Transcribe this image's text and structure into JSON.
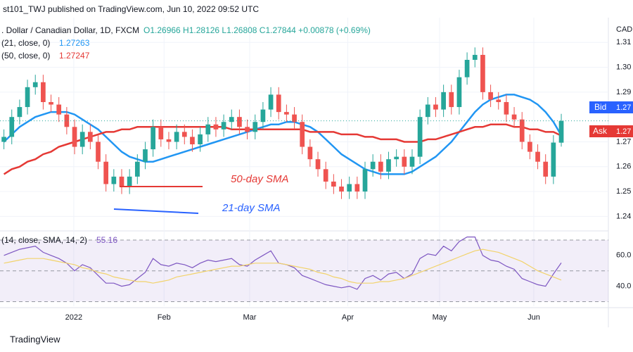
{
  "header": "st101_TWJ published on TradingView.com, Jun 10, 2022 09:52 UTC",
  "footer": "TradingView",
  "chart_data": {
    "type": "candlestick",
    "symbol": ". Dollar / Canadian Dollar, 1D, FXCM",
    "ohlc_label": "O1.26966 H1.28126 L1.26808 C1.27844 +0.00878 (+0.69%)",
    "currency": "CAD",
    "bid": {
      "name": "Bid",
      "label": "1.27"
    },
    "ask": {
      "name": "Ask",
      "label": "1.27"
    },
    "annotations": [
      "50-day SMA",
      "21-day SMA"
    ],
    "up_color": "#26a69a",
    "down_color": "#ef5350",
    "xlim": [
      -0.5,
      77
    ],
    "xticks": [
      {
        "value": 8.9,
        "label": "2022"
      },
      {
        "value": 20.4,
        "label": "Feb"
      },
      {
        "value": 31.3,
        "label": "Mar"
      },
      {
        "value": 43.8,
        "label": "Apr"
      },
      {
        "value": 55.5,
        "label": "May"
      },
      {
        "value": 67.5,
        "label": "Jun"
      }
    ],
    "ylim": [
      1.235,
      1.32
    ],
    "yticks": [
      1.24,
      1.25,
      1.26,
      1.27,
      {
        "value": 1.29,
        "label": "1.29"
      },
      {
        "value": 1.3,
        "label": "1.30"
      },
      1.31
    ],
    "grid": true,
    "open": [
      1.27,
      1.272,
      1.28,
      1.284,
      1.292,
      1.294,
      1.286,
      1.285,
      1.281,
      1.276,
      1.268,
      1.274,
      1.27,
      1.262,
      1.253,
      1.256,
      1.252,
      1.256,
      1.262,
      1.267,
      1.276,
      1.271,
      1.27,
      1.274,
      1.272,
      1.269,
      1.273,
      1.277,
      1.275,
      1.278,
      1.28,
      1.276,
      1.274,
      1.278,
      1.283,
      1.289,
      1.282,
      1.281,
      1.278,
      1.268,
      1.263,
      1.259,
      1.254,
      1.252,
      1.25,
      1.253,
      1.25,
      1.259,
      1.262,
      1.258,
      1.263,
      1.264,
      1.26,
      1.264,
      1.28,
      1.285,
      1.283,
      1.29,
      1.284,
      1.296,
      1.303,
      1.305,
      1.29,
      1.287,
      1.286,
      1.281,
      1.279,
      1.27,
      1.266,
      1.262,
      1.256,
      1.26966
    ],
    "high": [
      1.275,
      1.283,
      1.287,
      1.295,
      1.297,
      1.297,
      1.289,
      1.288,
      1.284,
      1.279,
      1.277,
      1.277,
      1.273,
      1.265,
      1.259,
      1.259,
      1.259,
      1.265,
      1.27,
      1.279,
      1.279,
      1.274,
      1.277,
      1.277,
      1.275,
      1.276,
      1.28,
      1.28,
      1.281,
      1.283,
      1.283,
      1.279,
      1.281,
      1.286,
      1.292,
      1.292,
      1.285,
      1.284,
      1.281,
      1.271,
      1.266,
      1.262,
      1.257,
      1.255,
      1.256,
      1.256,
      1.262,
      1.265,
      1.265,
      1.266,
      1.267,
      1.267,
      1.267,
      1.283,
      1.288,
      1.288,
      1.293,
      1.293,
      1.299,
      1.306,
      1.308,
      1.308,
      1.293,
      1.29,
      1.289,
      1.284,
      1.282,
      1.273,
      1.269,
      1.265,
      1.2727,
      1.28126
    ],
    "low": [
      1.267,
      1.269,
      1.277,
      1.281,
      1.289,
      1.283,
      1.282,
      1.278,
      1.273,
      1.265,
      1.265,
      1.267,
      1.259,
      1.25,
      1.25,
      1.249,
      1.249,
      1.253,
      1.259,
      1.264,
      1.268,
      1.267,
      1.267,
      1.269,
      1.266,
      1.266,
      1.27,
      1.272,
      1.272,
      1.275,
      1.273,
      1.271,
      1.271,
      1.275,
      1.28,
      1.279,
      1.278,
      1.275,
      1.265,
      1.26,
      1.256,
      1.251,
      1.249,
      1.247,
      1.247,
      1.247,
      1.247,
      1.256,
      1.255,
      1.255,
      1.26,
      1.257,
      1.257,
      1.261,
      1.277,
      1.28,
      1.28,
      1.281,
      1.281,
      1.293,
      1.3,
      1.287,
      1.284,
      1.283,
      1.278,
      1.276,
      1.267,
      1.263,
      1.259,
      1.253,
      1.253,
      1.26808
    ],
    "close": [
      1.272,
      1.28,
      1.284,
      1.292,
      1.294,
      1.286,
      1.285,
      1.281,
      1.276,
      1.268,
      1.274,
      1.27,
      1.262,
      1.253,
      1.256,
      1.252,
      1.256,
      1.262,
      1.267,
      1.276,
      1.271,
      1.27,
      1.274,
      1.272,
      1.269,
      1.273,
      1.277,
      1.275,
      1.278,
      1.28,
      1.276,
      1.274,
      1.278,
      1.283,
      1.289,
      1.282,
      1.281,
      1.278,
      1.268,
      1.263,
      1.259,
      1.254,
      1.252,
      1.25,
      1.253,
      1.25,
      1.259,
      1.262,
      1.258,
      1.263,
      1.264,
      1.26,
      1.264,
      1.28,
      1.285,
      1.283,
      1.29,
      1.284,
      1.296,
      1.303,
      1.305,
      1.29,
      1.287,
      1.286,
      1.281,
      1.279,
      1.27,
      1.266,
      1.262,
      1.256,
      1.2697,
      1.27844
    ],
    "series": [
      {
        "name": "(21, close, 0)",
        "color": "#2196f3",
        "value_label": "1.27263",
        "values": [
          1.27,
          1.273,
          1.276,
          1.278,
          1.28,
          1.281,
          1.282,
          1.282,
          1.282,
          1.281,
          1.279,
          1.277,
          1.275,
          1.272,
          1.269,
          1.266,
          1.264,
          1.263,
          1.262,
          1.262,
          1.263,
          1.264,
          1.265,
          1.266,
          1.267,
          1.268,
          1.269,
          1.27,
          1.271,
          1.272,
          1.273,
          1.274,
          1.275,
          1.276,
          1.277,
          1.277,
          1.278,
          1.278,
          1.277,
          1.276,
          1.274,
          1.271,
          1.268,
          1.265,
          1.263,
          1.261,
          1.259,
          1.258,
          1.257,
          1.257,
          1.257,
          1.257,
          1.258,
          1.26,
          1.262,
          1.264,
          1.267,
          1.27,
          1.274,
          1.278,
          1.282,
          1.285,
          1.287,
          1.288,
          1.289,
          1.289,
          1.288,
          1.287,
          1.285,
          1.282,
          1.278,
          1.27263
        ]
      },
      {
        "name": "(50, close, 0)",
        "color": "#e53935",
        "value_label": "1.27247",
        "values": [
          1.257,
          1.259,
          1.26,
          1.262,
          1.263,
          1.265,
          1.266,
          1.268,
          1.269,
          1.27,
          1.271,
          1.272,
          1.273,
          1.274,
          1.274,
          1.275,
          1.275,
          1.276,
          1.276,
          1.276,
          1.276,
          1.276,
          1.276,
          1.276,
          1.276,
          1.276,
          1.276,
          1.276,
          1.276,
          1.275,
          1.275,
          1.275,
          1.275,
          1.275,
          1.275,
          1.275,
          1.275,
          1.275,
          1.275,
          1.274,
          1.274,
          1.274,
          1.274,
          1.273,
          1.273,
          1.273,
          1.272,
          1.272,
          1.271,
          1.271,
          1.271,
          1.27,
          1.27,
          1.27,
          1.271,
          1.271,
          1.272,
          1.273,
          1.274,
          1.275,
          1.276,
          1.276,
          1.277,
          1.277,
          1.277,
          1.276,
          1.276,
          1.275,
          1.275,
          1.274,
          1.274,
          1.27247
        ]
      }
    ],
    "rsi": {
      "name": "(14, close, SMA, 14, 2)",
      "ylim": [
        27,
        75
      ],
      "yticks": [
        {
          "value": 60,
          "label": "60.0"
        },
        {
          "value": 40,
          "label": "40.0"
        }
      ],
      "bands": [
        70,
        50,
        30
      ],
      "series": [
        {
          "color": "#7e57c2",
          "value_label": "55.16",
          "values": [
            60,
            62,
            64,
            65,
            66,
            62,
            60,
            58,
            55,
            50,
            54,
            52,
            47,
            42,
            42,
            40,
            41,
            45,
            49,
            58,
            54,
            53,
            55,
            54,
            52,
            55,
            57,
            56,
            57,
            58,
            54,
            53,
            57,
            60,
            63,
            55,
            54,
            52,
            47,
            45,
            43,
            41,
            40,
            39,
            40,
            38,
            45,
            47,
            44,
            48,
            49,
            45,
            48,
            58,
            61,
            60,
            66,
            63,
            69,
            72,
            72,
            60,
            57,
            56,
            53,
            51,
            45,
            43,
            41,
            40,
            48,
            55.16
          ]
        },
        {
          "color": "#f2d36b",
          "values": [
            55,
            56,
            57,
            58,
            58,
            58,
            57,
            56,
            55,
            54,
            52,
            51,
            49,
            48,
            46,
            45,
            44,
            43,
            43,
            42,
            43,
            44,
            46,
            47,
            48,
            49,
            50,
            51,
            52,
            53,
            53,
            54,
            55,
            55,
            55,
            55,
            54,
            53,
            52,
            51,
            49,
            48,
            46,
            45,
            43,
            42,
            42,
            42,
            43,
            43,
            44,
            45,
            47,
            49,
            51,
            53,
            55,
            57,
            59,
            61,
            63,
            64,
            63,
            62,
            60,
            58,
            56,
            53,
            50,
            48,
            46,
            44
          ]
        }
      ]
    }
  }
}
